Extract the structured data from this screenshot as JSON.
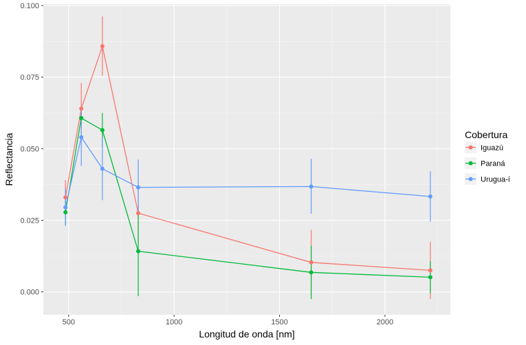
{
  "chart_data": {
    "type": "line",
    "xlabel": "Longitud de onda [nm]",
    "ylabel": "Reflectancia",
    "xlim": [
      380,
      2310
    ],
    "ylim": [
      -0.008,
      0.1005
    ],
    "x_ticks": [
      500,
      1000,
      1500,
      2000
    ],
    "x_tick_labels": [
      "500",
      "1000",
      "1500",
      "2000"
    ],
    "y_ticks": [
      0.0,
      0.025,
      0.05,
      0.075,
      0.1
    ],
    "y_tick_labels": [
      "0.000",
      "0.025",
      "0.050",
      "0.075",
      "0.100"
    ],
    "grid": true,
    "legend": {
      "title": "Cobertura",
      "position": "right"
    },
    "x": [
      485,
      560,
      660,
      830,
      1650,
      2215
    ],
    "series": [
      {
        "name": "Iguazú",
        "color": "#F8766D",
        "values": [
          0.033,
          0.064,
          0.0858,
          0.0275,
          0.0103,
          0.0075
        ],
        "err_low": [
          0.027,
          0.055,
          0.0755,
          0.0165,
          -0.001,
          -0.0025
        ],
        "err_high": [
          0.039,
          0.073,
          0.0962,
          0.0385,
          0.0217,
          0.0175
        ]
      },
      {
        "name": "Paraná",
        "color": "#00BA38",
        "values": [
          0.0278,
          0.0607,
          0.0565,
          0.0142,
          0.0068,
          0.0051
        ],
        "err_low": [
          0.0235,
          0.0585,
          0.0505,
          -0.0015,
          -0.0025,
          -0.0005
        ],
        "err_high": [
          0.032,
          0.063,
          0.0625,
          0.0299,
          0.0161,
          0.0107
        ]
      },
      {
        "name": "Urugua-í",
        "color": "#619CFF",
        "values": [
          0.0295,
          0.054,
          0.043,
          0.0365,
          0.0368,
          0.0333
        ],
        "err_low": [
          0.023,
          0.044,
          0.032,
          0.027,
          0.0273,
          0.0245
        ],
        "err_high": [
          0.036,
          0.064,
          0.054,
          0.0462,
          0.0465,
          0.0421
        ]
      }
    ]
  }
}
